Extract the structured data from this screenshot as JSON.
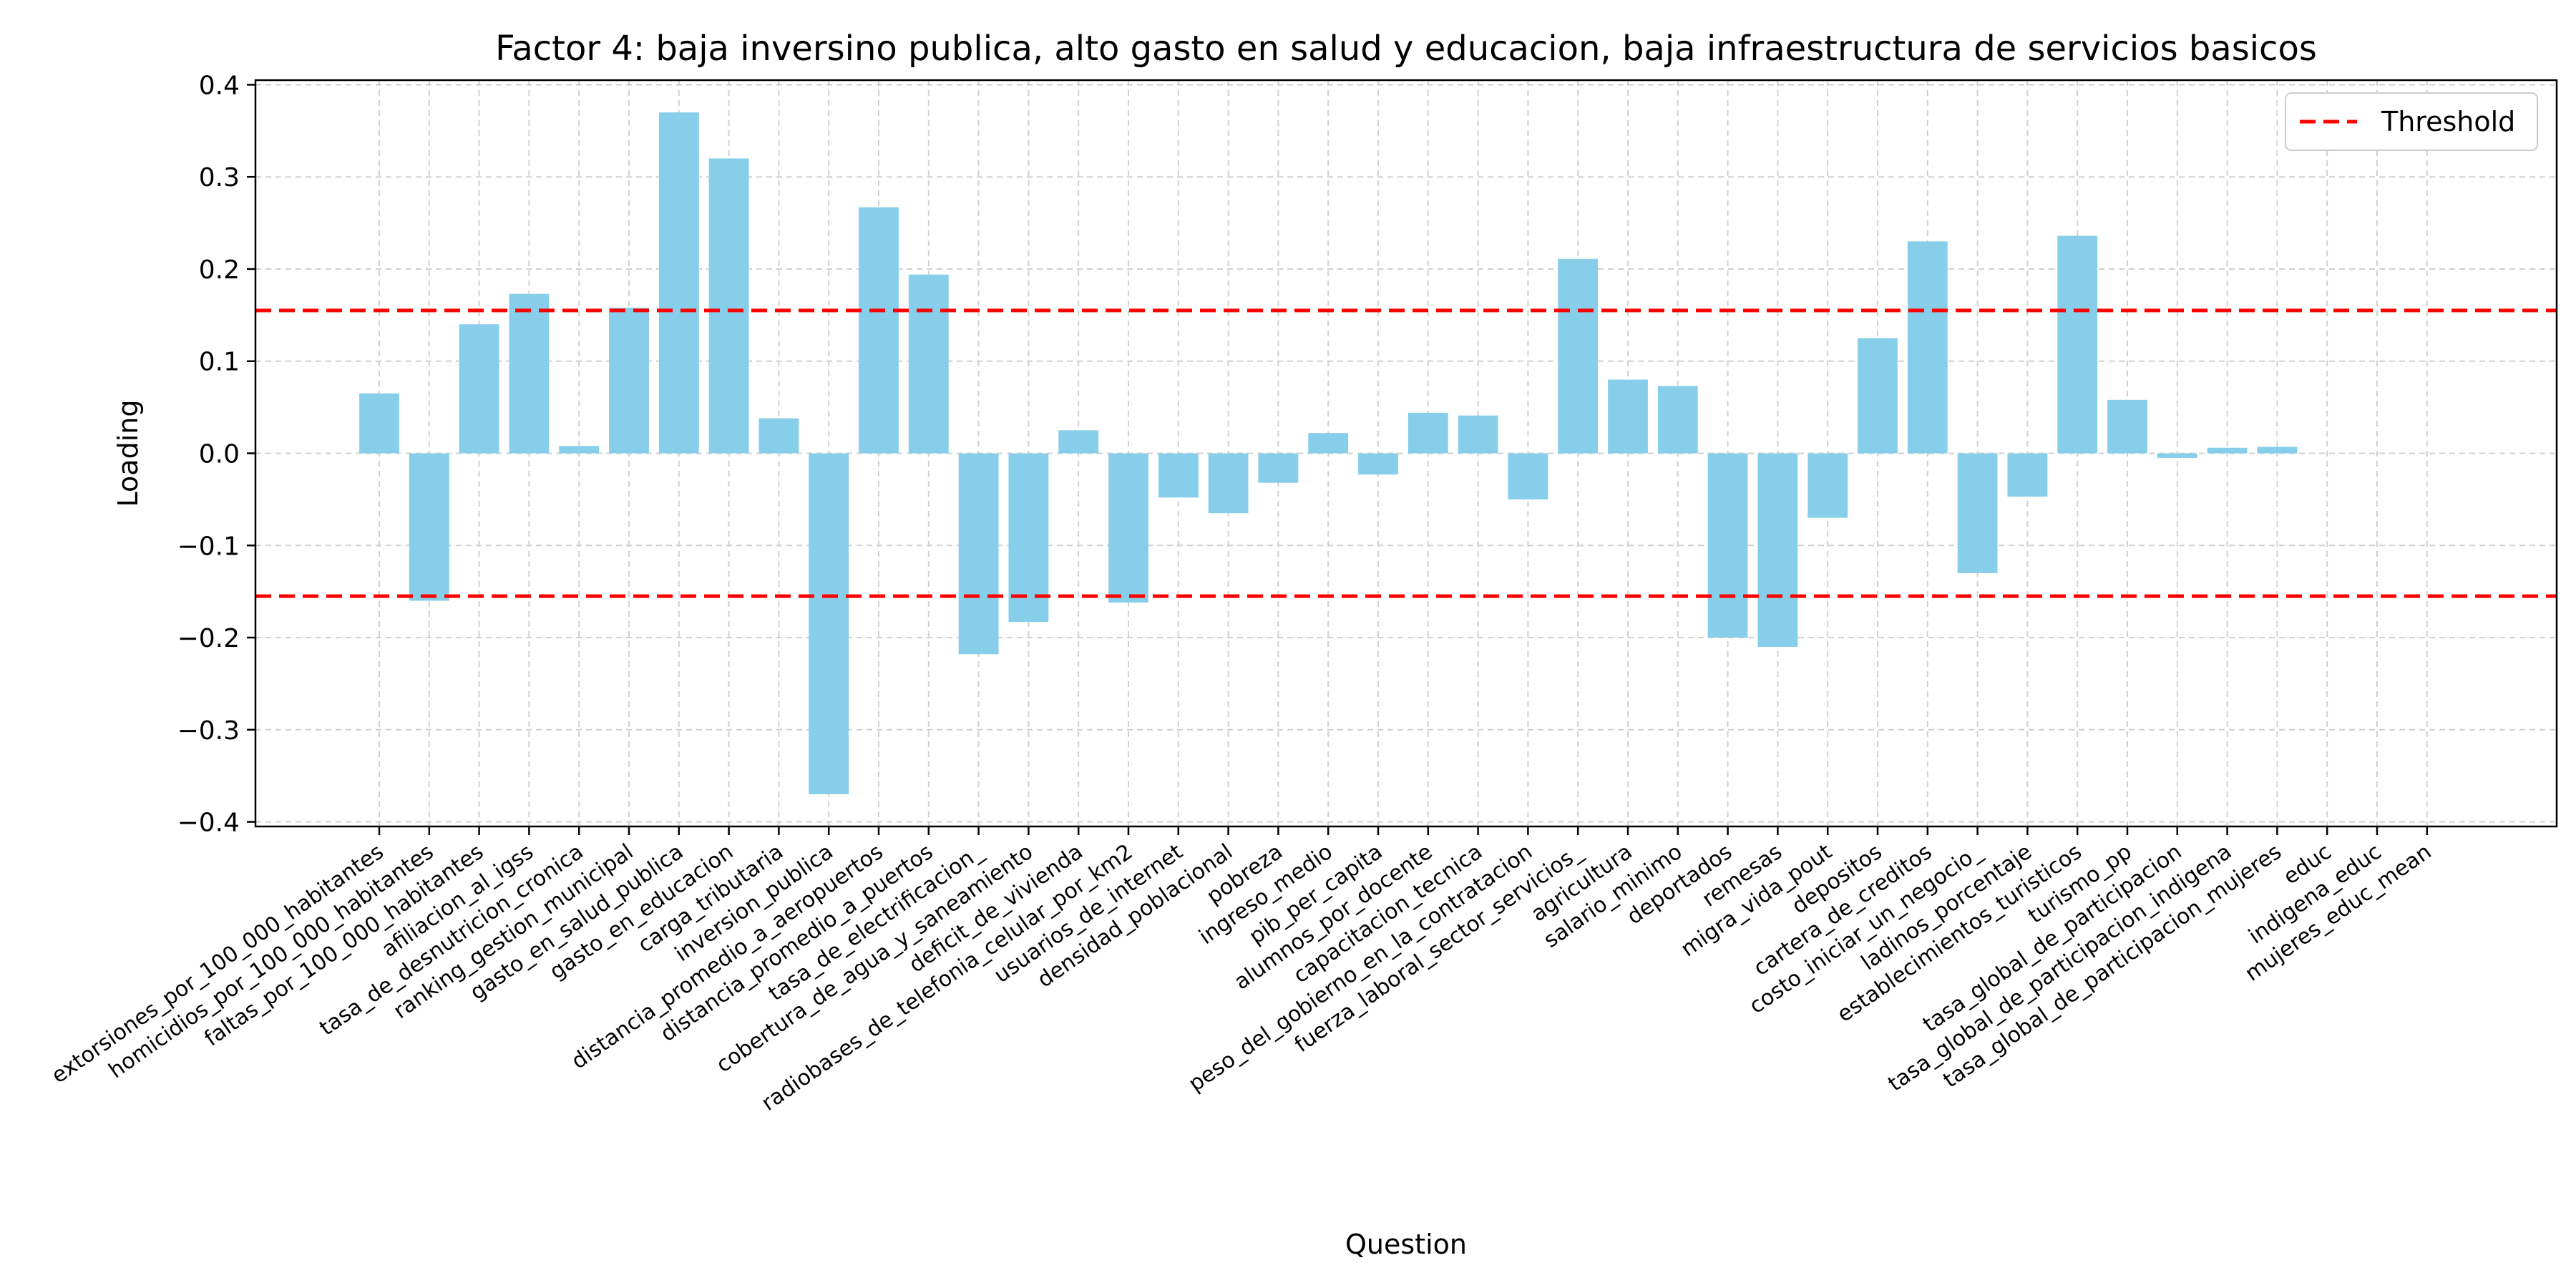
{
  "chart_data": {
    "type": "bar",
    "title": "Factor 4: baja inversino publica, alto gasto en salud y educacion, baja infraestructura de servicios basicos",
    "xlabel": "Question",
    "ylabel": "Loading",
    "ylim": [
      -0.405,
      0.405
    ],
    "yticks": [
      -0.4,
      -0.3,
      -0.2,
      -0.1,
      0.0,
      0.1,
      0.2,
      0.3,
      0.4
    ],
    "ytick_labels": [
      "−0.4",
      "−0.3",
      "−0.2",
      "−0.1",
      "0.0",
      "0.1",
      "0.2",
      "0.3",
      "0.4"
    ],
    "grid": true,
    "bar_color": "#87CEEB",
    "threshold": {
      "name": "Threshold",
      "value": 0.155,
      "color": "#ff0000",
      "style": "dashed",
      "mirrored": true
    },
    "legend": {
      "position": "top-right",
      "entries": [
        "Threshold"
      ]
    },
    "categories": [
      "extorsiones_por_100_000_habitantes",
      "homicidios_por_100_000_habitantes",
      "faltas_por_100_000_habitantes",
      "afiliacion_al_igss",
      "tasa_de_desnutricion_cronica",
      "ranking_gestion_municipal",
      "gasto_en_salud_publica",
      "gasto_en_educacion",
      "carga_tributaria",
      "inversion_publica",
      "distancia_promedio_a_aeropuertos",
      "distancia_promedio_a_puertos",
      "tasa_de_electrificacion_",
      "cobertura_de_agua_y_saneamiento",
      "deficit_de_vivienda",
      "radiobases_de_telefonia_celular_por_km2",
      "usuarios_de_internet",
      "densidad_poblacional",
      "pobreza",
      "ingreso_medio",
      "pib_per_capita",
      "alumnos_por_docente",
      "capacitacion_tecnica",
      "peso_del_gobierno_en_la_contratacion",
      "fuerza_laboral_sector_servicios_",
      "agricultura",
      "salario_minimo",
      "deportados",
      "remesas",
      "migra_vida_pout",
      "depositos",
      "cartera_de_creditos",
      "costo_iniciar_un_negocio_",
      "ladinos_porcentaje",
      "establecimientos_turisticos",
      "turismo_pp",
      "tasa_global_de_participacion",
      "tasa_global_de_participacion_indigena",
      "tasa_global_de_participacion_mujeres",
      "educ",
      "indigena_educ",
      "mujeres_educ_mean"
    ],
    "values": [
      0.065,
      -0.16,
      0.14,
      0.173,
      0.008,
      0.158,
      0.37,
      0.32,
      0.038,
      -0.37,
      0.267,
      0.194,
      -0.218,
      -0.183,
      0.025,
      -0.162,
      -0.048,
      -0.065,
      -0.032,
      0.022,
      -0.023,
      0.044,
      0.041,
      -0.05,
      0.211,
      0.08,
      0.073,
      -0.2,
      -0.21,
      -0.07,
      0.125,
      0.23,
      -0.13,
      -0.047,
      0.236,
      0.058,
      -0.005,
      0.006,
      0.007,
      0.0,
      0.0,
      0.0
    ]
  }
}
